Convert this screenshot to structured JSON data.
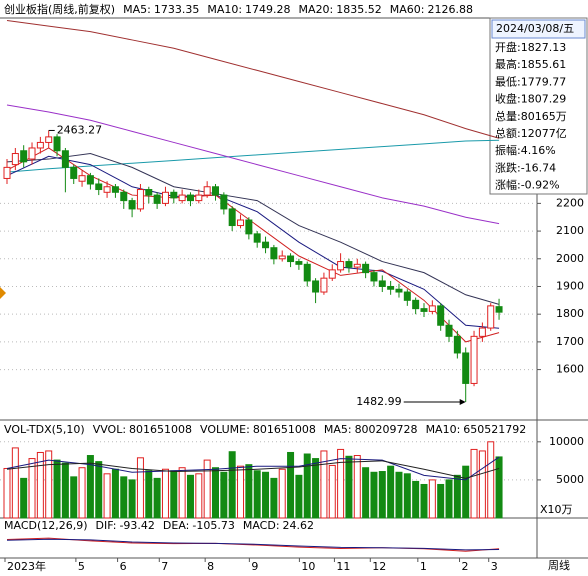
{
  "chart_data": [
    {
      "type": "candlestick",
      "title": "创业板指(周线,前复权)",
      "header": [
        {
          "label": "MA5:",
          "value": 1733.35,
          "color": "#d02020"
        },
        {
          "label": "MA10:",
          "value": 1749.28,
          "color": "#1a1a80"
        },
        {
          "label": "MA20:",
          "value": 1835.52,
          "color": "#333355"
        },
        {
          "label": "MA60:",
          "value": 2126.88,
          "color": "#9a30c8"
        }
      ],
      "ylim": [
        1418,
        2862
      ],
      "yticks": [
        1600,
        1700,
        1800,
        1900,
        2000,
        2100,
        2200
      ],
      "up_color": "#e02020",
      "down_color": "#138a13",
      "candles": [
        [
          2290,
          2360,
          2270,
          2330
        ],
        [
          2340,
          2400,
          2320,
          2380
        ],
        [
          2390,
          2410,
          2330,
          2350
        ],
        [
          2360,
          2420,
          2340,
          2400
        ],
        [
          2400,
          2440,
          2380,
          2420
        ],
        [
          2420,
          2463.27,
          2400,
          2440
        ],
        [
          2440,
          2450,
          2370,
          2390
        ],
        [
          2390,
          2400,
          2240,
          2330
        ],
        [
          2330,
          2340,
          2270,
          2290
        ],
        [
          2280,
          2320,
          2260,
          2300
        ],
        [
          2300,
          2310,
          2250,
          2270
        ],
        [
          2270,
          2290,
          2230,
          2250
        ],
        [
          2240,
          2280,
          2220,
          2260
        ],
        [
          2260,
          2270,
          2220,
          2240
        ],
        [
          2240,
          2250,
          2180,
          2210
        ],
        [
          2210,
          2220,
          2150,
          2180
        ],
        [
          2180,
          2270,
          2170,
          2250
        ],
        [
          2250,
          2260,
          2200,
          2230
        ],
        [
          2230,
          2240,
          2180,
          2200
        ],
        [
          2200,
          2260,
          2190,
          2240
        ],
        [
          2240,
          2250,
          2200,
          2220
        ],
        [
          2210,
          2250,
          2200,
          2230
        ],
        [
          2230,
          2240,
          2190,
          2210
        ],
        [
          2210,
          2250,
          2200,
          2230
        ],
        [
          2230,
          2280,
          2220,
          2260
        ],
        [
          2260,
          2270,
          2210,
          2230
        ],
        [
          2230,
          2240,
          2160,
          2180
        ],
        [
          2180,
          2190,
          2100,
          2120
        ],
        [
          2120,
          2160,
          2110,
          2140
        ],
        [
          2140,
          2150,
          2070,
          2090
        ],
        [
          2090,
          2100,
          2040,
          2060
        ],
        [
          2060,
          2080,
          2020,
          2040
        ],
        [
          2040,
          2050,
          1980,
          2000
        ],
        [
          2000,
          2030,
          1990,
          2010
        ],
        [
          2010,
          2020,
          1970,
          1990
        ],
        [
          1990,
          2000,
          1960,
          1980
        ],
        [
          1980,
          1990,
          1900,
          1920
        ],
        [
          1920,
          1930,
          1840,
          1880
        ],
        [
          1880,
          1950,
          1870,
          1930
        ],
        [
          1930,
          1980,
          1920,
          1960
        ],
        [
          1960,
          2020,
          1950,
          1990
        ],
        [
          1990,
          2000,
          1950,
          1970
        ],
        [
          1970,
          2000,
          1950,
          1980
        ],
        [
          1980,
          1990,
          1930,
          1950
        ],
        [
          1950,
          1960,
          1900,
          1920
        ],
        [
          1920,
          1940,
          1880,
          1900
        ],
        [
          1900,
          1920,
          1870,
          1890
        ],
        [
          1890,
          1910,
          1860,
          1880
        ],
        [
          1880,
          1890,
          1830,
          1850
        ],
        [
          1850,
          1860,
          1800,
          1820
        ],
        [
          1820,
          1840,
          1790,
          1810
        ],
        [
          1810,
          1850,
          1800,
          1830
        ],
        [
          1830,
          1840,
          1740,
          1760
        ],
        [
          1760,
          1780,
          1700,
          1720
        ],
        [
          1720,
          1740,
          1640,
          1660
        ],
        [
          1660,
          1680,
          1482.99,
          1550
        ],
        [
          1550,
          1740,
          1540,
          1720
        ],
        [
          1720,
          1770,
          1700,
          1750
        ],
        [
          1750,
          1840,
          1740,
          1830
        ],
        [
          1827.13,
          1855.61,
          1779.77,
          1807.29
        ]
      ],
      "lines": [
        {
          "color": "#a03030",
          "x": [
            0,
            5,
            10,
            15,
            20,
            25,
            30,
            35,
            40,
            45,
            50,
            55,
            59
          ],
          "values": [
            2860,
            2840,
            2820,
            2790,
            2760,
            2720,
            2680,
            2640,
            2600,
            2560,
            2520,
            2470,
            2435
          ]
        },
        {
          "color": "#1a9aaa",
          "x": [
            0,
            5,
            10,
            15,
            20,
            25,
            30,
            35,
            40,
            45,
            50,
            55,
            59
          ],
          "values": [
            2313,
            2325,
            2335,
            2345,
            2355,
            2365,
            2375,
            2385,
            2395,
            2405,
            2415,
            2425,
            2428
          ]
        },
        {
          "color": "#9a30c8",
          "x": [
            0,
            5,
            10,
            15,
            20,
            25,
            30,
            35,
            40,
            45,
            50,
            55,
            59
          ],
          "values": [
            2555,
            2530,
            2500,
            2460,
            2420,
            2380,
            2340,
            2300,
            2260,
            2220,
            2190,
            2150,
            2126.88
          ]
        },
        {
          "color": "#333355",
          "x": [
            0,
            5,
            10,
            15,
            20,
            25,
            30,
            35,
            40,
            45,
            50,
            55,
            59
          ],
          "values": [
            2350,
            2360,
            2380,
            2330,
            2260,
            2235,
            2210,
            2120,
            2060,
            1990,
            1950,
            1870,
            1835.52
          ]
        },
        {
          "color": "#1a1a80",
          "x": [
            0,
            5,
            10,
            15,
            20,
            25,
            30,
            35,
            40,
            45,
            50,
            55,
            59
          ],
          "values": [
            2300,
            2370,
            2340,
            2260,
            2225,
            2230,
            2170,
            2060,
            1970,
            1955,
            1890,
            1760,
            1749.28
          ]
        },
        {
          "color": "#d02020",
          "x": [
            0,
            5,
            10,
            15,
            20,
            25,
            30,
            35,
            40,
            45,
            50,
            55,
            59
          ],
          "values": [
            2320,
            2400,
            2300,
            2230,
            2220,
            2230,
            2120,
            2010,
            1940,
            1960,
            1850,
            1700,
            1733.35
          ]
        }
      ],
      "annotations": [
        {
          "x": 5,
          "value": 2463.27
        },
        {
          "x": 55,
          "value": 1482.99
        }
      ],
      "info_date": "2024/03/08/五",
      "info": [
        "开盘:1827.13",
        "最高:1855.61",
        "最低:1779.77",
        "收盘:1807.29",
        "总量:80165万",
        "总额:12077亿",
        "振幅:4.16%",
        "涨跌:-16.74",
        "涨幅:-0.92%"
      ],
      "xlabels": [
        {
          "x": 0,
          "label": "2023年"
        },
        {
          "x": 8.5,
          "label": "5"
        },
        {
          "x": 13.5,
          "label": "6"
        },
        {
          "x": 18.5,
          "label": "7"
        },
        {
          "x": 24,
          "label": "8"
        },
        {
          "x": 29.3,
          "label": "9"
        },
        {
          "x": 35.3,
          "label": "10"
        },
        {
          "x": 39.5,
          "label": "11"
        },
        {
          "x": 43.8,
          "label": "12"
        },
        {
          "x": 49.5,
          "label": "1"
        },
        {
          "x": 54.5,
          "label": "2"
        },
        {
          "x": 58,
          "label": "3"
        }
      ],
      "period": "周线"
    },
    {
      "type": "bar",
      "title": "VOL-TDX(5,10)",
      "header": [
        {
          "label": "VVOL:",
          "value": 801651008,
          "color": "#d02020"
        },
        {
          "label": "VOLUME:",
          "value": 801651008,
          "color": "#1a1a80"
        },
        {
          "label": "MA5:",
          "value": 800209728,
          "color": "#1a1a80"
        },
        {
          "label": "MA10:",
          "value": 650521792,
          "color": "#1a1a80"
        }
      ],
      "ylim": [
        0,
        10500
      ],
      "yticks": [
        5000,
        10000
      ],
      "unit": "X10万",
      "values": [
        6500,
        9200,
        5200,
        7800,
        8600,
        8800,
        7600,
        7200,
        5400,
        6600,
        8200,
        7400,
        5800,
        6400,
        5400,
        5000,
        7900,
        6200,
        5200,
        6400,
        6200,
        6600,
        5600,
        5800,
        7600,
        6600,
        6000,
        8700,
        6800,
        7000,
        6200,
        6000,
        5200,
        6400,
        8600,
        5600,
        8400,
        7800,
        8800,
        6900,
        9000,
        8100,
        8200,
        6600,
        6000,
        6100,
        6800,
        6000,
        5800,
        4800,
        4400,
        5000,
        4400,
        5000,
        5600,
        6800,
        9000,
        8800,
        10000,
        8017
      ],
      "lines": [
        {
          "color": "#1a1a80",
          "x": [
            0,
            5,
            10,
            15,
            20,
            25,
            30,
            35,
            40,
            45,
            50,
            55,
            59
          ],
          "values": [
            6500,
            7600,
            7000,
            6000,
            6200,
            6400,
            6800,
            6800,
            7800,
            7600,
            5600,
            5000,
            8002
          ]
        },
        {
          "color": "#222222",
          "x": [
            0,
            5,
            10,
            15,
            20,
            25,
            30,
            35,
            40,
            45,
            50,
            55,
            59
          ],
          "values": [
            6400,
            7000,
            7200,
            6500,
            6100,
            6200,
            6400,
            6700,
            7300,
            7500,
            6400,
            5200,
            6505
          ]
        }
      ]
    },
    {
      "type": "line",
      "title": "MACD(12,26,9)",
      "header": [
        {
          "label": "DIF:",
          "value": -93.42,
          "color": "#d02020"
        },
        {
          "label": "DEA:",
          "value": -105.73,
          "color": "#1a1a80"
        },
        {
          "label": "MACD:",
          "value": 24.62,
          "color": "#1a1a80"
        }
      ],
      "ylim": [
        -200,
        150
      ],
      "lines": [
        {
          "color": "#d02020",
          "x": [
            0,
            5,
            10,
            15,
            20,
            25,
            30,
            35,
            40,
            45,
            50,
            55,
            59
          ],
          "values": [
            40,
            60,
            20,
            -10,
            -20,
            -15,
            -40,
            -70,
            -90,
            -80,
            -95,
            -130,
            -93.42
          ]
        },
        {
          "color": "#1a1a80",
          "x": [
            0,
            5,
            10,
            15,
            20,
            25,
            30,
            35,
            40,
            45,
            50,
            55,
            59
          ],
          "values": [
            30,
            45,
            35,
            5,
            -10,
            -15,
            -30,
            -55,
            -75,
            -80,
            -88,
            -110,
            -105.73
          ]
        }
      ]
    }
  ]
}
